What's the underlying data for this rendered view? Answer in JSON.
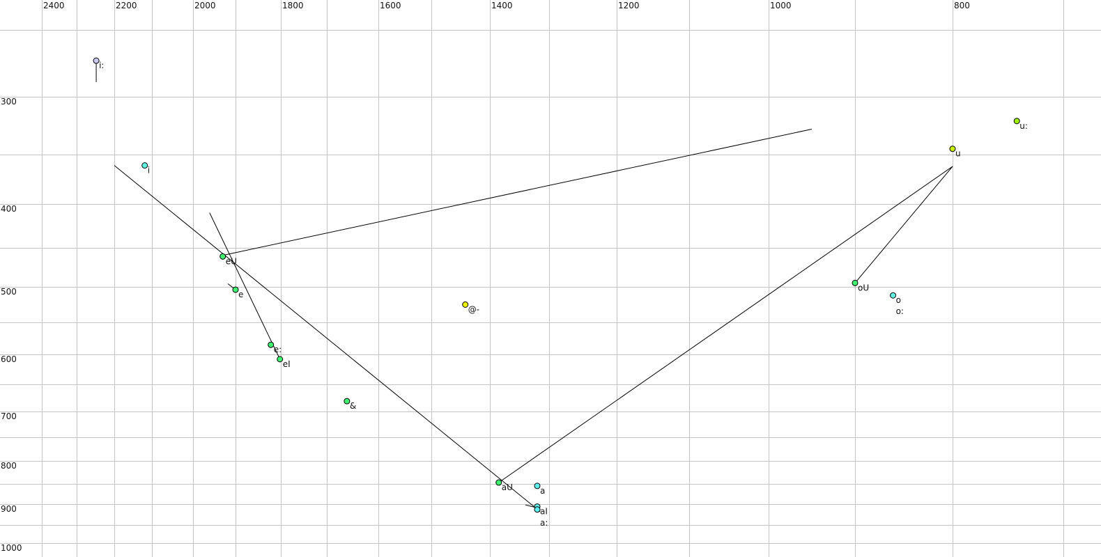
{
  "chart_data": {
    "type": "scatter",
    "title": "",
    "xlabel": "",
    "ylabel": "",
    "x_reversed": true,
    "y_reversed": true,
    "grid": true,
    "x_ticks": [
      2400,
      2200,
      2000,
      1800,
      1600,
      1400,
      1200,
      1000,
      800
    ],
    "x_grid": [
      2400,
      2300,
      2200,
      2100,
      2000,
      1900,
      1800,
      1700,
      1600,
      1500,
      1400,
      1300,
      1200,
      1100,
      1000,
      900,
      800,
      700
    ],
    "y_ticks": [
      300,
      400,
      500,
      600,
      700,
      800,
      900,
      1000
    ],
    "y_grid": [
      250,
      300,
      350,
      400,
      450,
      500,
      550,
      600,
      650,
      700,
      750,
      800,
      850,
      900,
      950,
      1000
    ],
    "points": [
      {
        "label": "i:",
        "x": 2248,
        "y": 273,
        "color": "#c8c8f0"
      },
      {
        "label": "i",
        "x": 2119,
        "y": 361,
        "color": "#60f0e0"
      },
      {
        "label": "eU",
        "x": 1930,
        "y": 461,
        "color": "#40f070"
      },
      {
        "label": "e",
        "x": 1900,
        "y": 504,
        "color": "#40f070"
      },
      {
        "label": "e:",
        "x": 1822,
        "y": 585,
        "color": "#40f070"
      },
      {
        "label": "eI",
        "x": 1802,
        "y": 608,
        "color": "#40f070"
      },
      {
        "label": "&",
        "x": 1661,
        "y": 681,
        "color": "#40f070"
      },
      {
        "label": "@-",
        "x": 1442,
        "y": 525,
        "color": "#e8f000"
      },
      {
        "label": "aU",
        "x": 1385,
        "y": 847,
        "color": "#40f070"
      },
      {
        "label": "a",
        "x": 1320,
        "y": 855,
        "color": "#60f0f0"
      },
      {
        "label": "aI",
        "x": 1320,
        "y": 906,
        "color": "#60f0f0"
      },
      {
        "label": "a:",
        "x": 1320,
        "y": 913,
        "color": "#60f0f0"
      },
      {
        "label": "oU",
        "x": 900,
        "y": 495,
        "color": "#40f070"
      },
      {
        "label": "o",
        "x": 861,
        "y": 512,
        "color": "#60f0e0"
      },
      {
        "label": "o:",
        "x": 861,
        "y": 512,
        "color": "#60f0e0"
      },
      {
        "label": "u",
        "x": 800,
        "y": 345,
        "color": "#c8f000"
      },
      {
        "label": "u:",
        "x": 742,
        "y": 321,
        "color": "#a0f000"
      }
    ],
    "trajectories": [
      {
        "points": [
          [
            2248,
            273
          ],
          [
            2248,
            289
          ]
        ]
      },
      {
        "points": [
          [
            2200,
            361
          ],
          [
            1315,
            918
          ]
        ]
      },
      {
        "points": [
          [
            1925,
            459
          ],
          [
            950,
            328
          ]
        ]
      },
      {
        "points": [
          [
            1961,
            410
          ],
          [
            1802,
            608
          ]
        ]
      },
      {
        "points": [
          [
            1918,
            496
          ],
          [
            1900,
            504
          ]
        ]
      },
      {
        "points": [
          [
            1385,
            847
          ],
          [
            800,
            362
          ]
        ]
      },
      {
        "points": [
          [
            900,
            495
          ],
          [
            800,
            362
          ]
        ]
      },
      {
        "points": [
          [
            1340,
            902
          ],
          [
            1320,
            909
          ]
        ]
      }
    ]
  }
}
